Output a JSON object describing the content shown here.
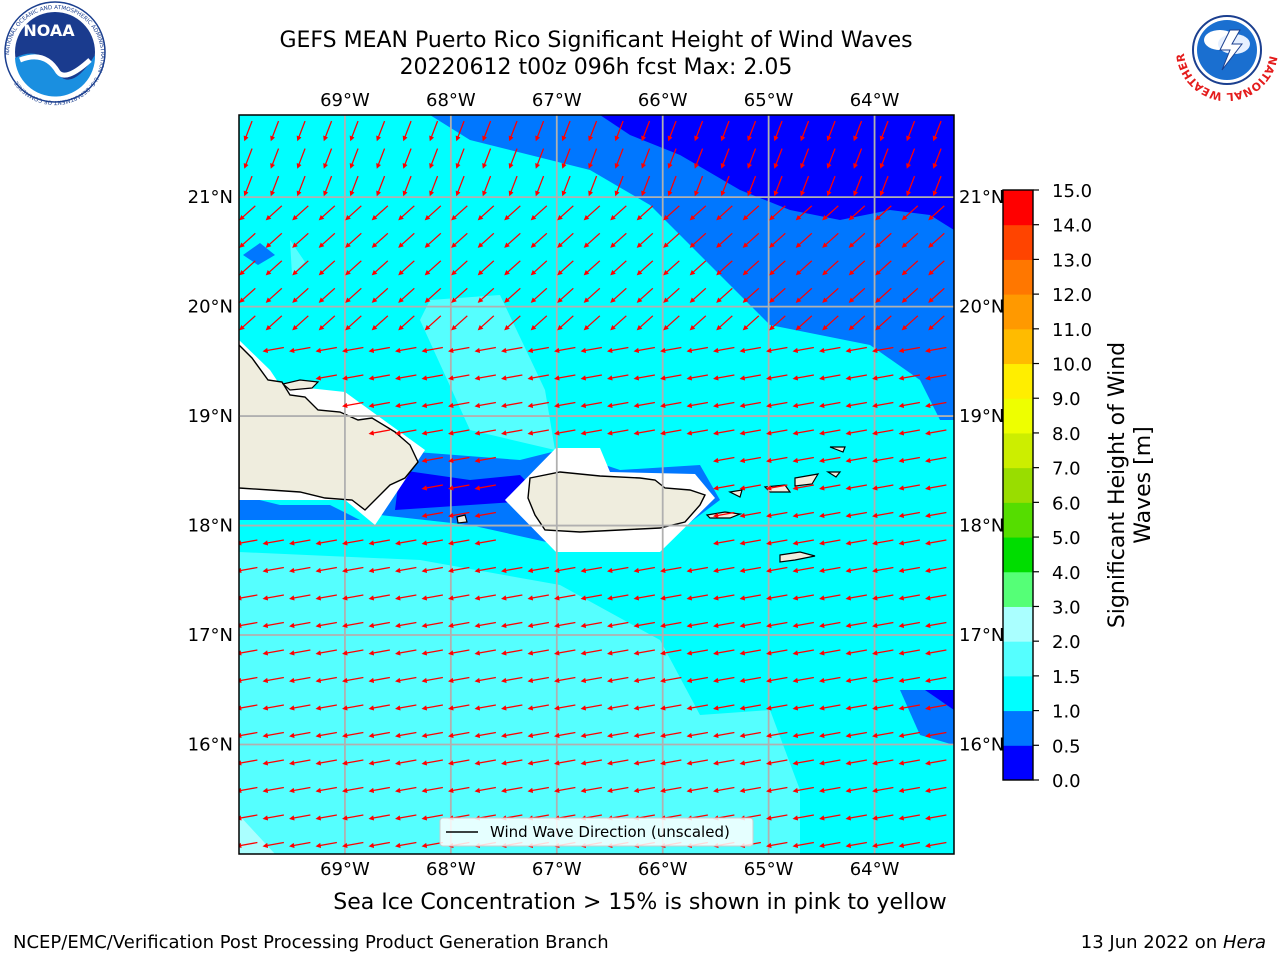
{
  "title": {
    "line1": "GEFS MEAN Puerto Rico Significant Height of Wind Waves",
    "line2": "20220612 t00z 096h fcst   Max: 2.05"
  },
  "map": {
    "lon_ticks": [
      "69°W",
      "68°W",
      "67°W",
      "66°W",
      "65°W",
      "64°W"
    ],
    "lat_ticks": [
      "21°N",
      "20°N",
      "19°N",
      "18°N",
      "17°N",
      "16°N"
    ],
    "lon_range": [
      -70.0,
      -63.25
    ],
    "lat_range": [
      15.0,
      21.75
    ],
    "arrow_color": "#ff0000",
    "land_color": "#efedde",
    "grid": true
  },
  "legend": {
    "label": "Wind Wave Direction (unscaled)"
  },
  "colorbar": {
    "label": "Significant Height of Wind Waves [m]",
    "levels": [
      "0.0",
      "0.5",
      "1.0",
      "1.5",
      "2.0",
      "3.0",
      "4.0",
      "5.0",
      "6.0",
      "7.0",
      "8.0",
      "9.0",
      "10.0",
      "11.0",
      "12.0",
      "13.0",
      "14.0",
      "15.0"
    ],
    "colors": [
      "#0000ff",
      "#0077ff",
      "#00ffff",
      "#55ffff",
      "#aaffff",
      "#55ff77",
      "#00dd00",
      "#55dd00",
      "#99dd00",
      "#ccee00",
      "#eeff00",
      "#ffee00",
      "#ffbb00",
      "#ff9900",
      "#ff7700",
      "#ff4400",
      "#ff0000"
    ]
  },
  "subtitle": "Sea Ice Concentration > 15% is shown in pink to yellow",
  "footer": {
    "left": "NCEP/EMC/Verification Post Processing Product Generation Branch",
    "right_prefix": "13 Jun 2022 on ",
    "right_italic": "Hera"
  },
  "logos": {
    "noaa": "NOAA",
    "noaa_ring": "NATIONAL OCEANIC AND ATMOSPHERIC ADMINISTRATION · U.S. DEPARTMENT OF COMMERCE",
    "nws_ring": "NATIONAL WEATHER SERVICE"
  }
}
